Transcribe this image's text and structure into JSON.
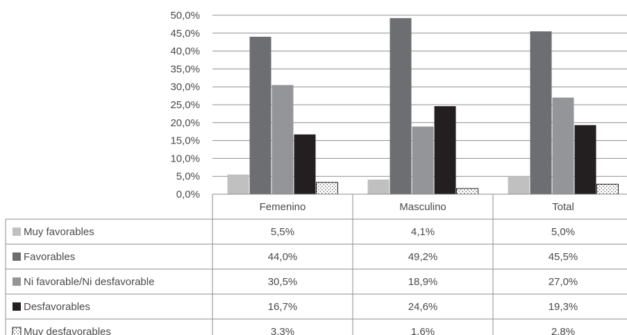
{
  "chart_data": {
    "type": "bar",
    "categories": [
      "Femenino",
      "Masculino",
      "Total"
    ],
    "series": [
      {
        "name": "Muy favorables",
        "values": [
          5.5,
          4.1,
          5.0
        ],
        "labels": [
          "5,5%",
          "4,1%",
          "5,0%"
        ],
        "color": "#c0c0c0",
        "pattern": false
      },
      {
        "name": "Favorables",
        "values": [
          44.0,
          49.2,
          45.5
        ],
        "labels": [
          "44,0%",
          "49,2%",
          "45,5%"
        ],
        "color": "#6d6e71",
        "pattern": false
      },
      {
        "name": "Ni favorable/Ni desfavorable",
        "values": [
          30.5,
          18.9,
          27.0
        ],
        "labels": [
          "30,5%",
          "18,9%",
          "27,0%"
        ],
        "color": "#939598",
        "pattern": false
      },
      {
        "name": "Desfavorables",
        "values": [
          16.7,
          24.6,
          19.3
        ],
        "labels": [
          "16,7%",
          "24,6%",
          "19,3%"
        ],
        "color": "#231f20",
        "pattern": false
      },
      {
        "name": "Muy desfavorables",
        "values": [
          3.3,
          1.6,
          2.8
        ],
        "labels": [
          "3,3%",
          "1,6%",
          "2,8%"
        ],
        "color": "#ffffff",
        "pattern": true
      }
    ],
    "y_ticks": [
      "0,0%",
      "5,0%",
      "10,0%",
      "15,0%",
      "20,0%",
      "25,0%",
      "30,0%",
      "35,0%",
      "40,0%",
      "45,0%",
      "50,0%"
    ],
    "ylim": [
      0,
      50
    ],
    "grid": true,
    "legend": "data-table-below"
  }
}
